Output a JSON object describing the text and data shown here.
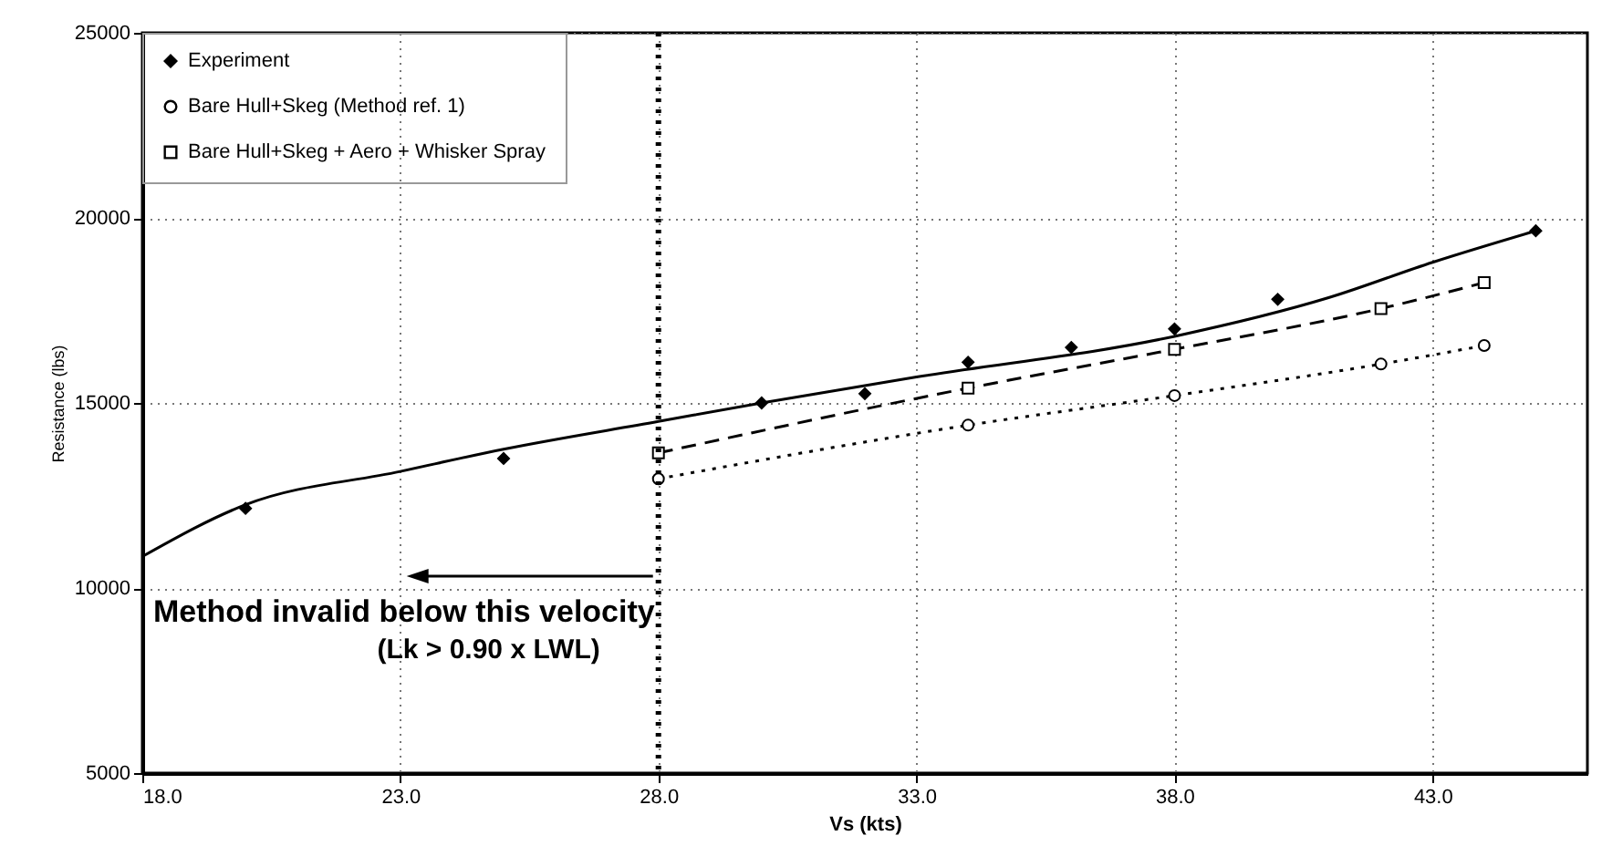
{
  "chart_data": {
    "type": "line",
    "xlabel": "Vs (kts)",
    "ylabel": "Resistance (lbs)",
    "xlim": [
      18,
      46
    ],
    "ylim": [
      5000,
      25000
    ],
    "xticks": [
      {
        "value": 18,
        "label": "18.0"
      },
      {
        "value": 23,
        "label": "23.0"
      },
      {
        "value": 28,
        "label": "28.0"
      },
      {
        "value": 33,
        "label": "33.0"
      },
      {
        "value": 38,
        "label": "38.0"
      },
      {
        "value": 43,
        "label": "43.0"
      }
    ],
    "yticks": [
      5000,
      10000,
      15000,
      20000,
      25000
    ],
    "grid": true,
    "legend": "top left",
    "series": [
      {
        "name": "Experiment",
        "type": "scatter",
        "marker": "diamond",
        "color": "#000000",
        "x": [
          20,
          25,
          30,
          32,
          34,
          36,
          38,
          40,
          45
        ],
        "values": [
          12150,
          13500,
          15000,
          15250,
          16100,
          16500,
          17000,
          17800,
          19650
        ]
      },
      {
        "name": "Bare Hull+Skeg (Method ref. 1)",
        "marker": "circle",
        "line_style": "dotted",
        "color": "#000000",
        "x": [
          28,
          34,
          38,
          42,
          44
        ],
        "values": [
          12950,
          14400,
          15200,
          16050,
          16550
        ]
      },
      {
        "name": "Bare Hull+Skeg + Aero + Whisker Spray",
        "marker": "square",
        "line_style": "dashed",
        "color": "#000000",
        "x": [
          28,
          34,
          38,
          42,
          44
        ],
        "values": [
          13650,
          15400,
          16450,
          17550,
          18250
        ]
      },
      {
        "marker": "none",
        "line_style": "solid",
        "color": "#000000",
        "x": [
          18,
          20,
          23,
          25,
          28,
          30,
          33,
          38,
          41,
          43,
          45
        ],
        "values": [
          10850,
          12250,
          13150,
          13750,
          14500,
          15000,
          15700,
          16800,
          17850,
          18800,
          19650
        ]
      }
    ],
    "ref_lines": [
      {
        "axis": "x",
        "value": 28,
        "label": "Method invalid below this velocity",
        "line_style": "dotted",
        "color": "#000000"
      }
    ],
    "annotations": [
      "(Lk > 0.90 x LWL)"
    ]
  }
}
